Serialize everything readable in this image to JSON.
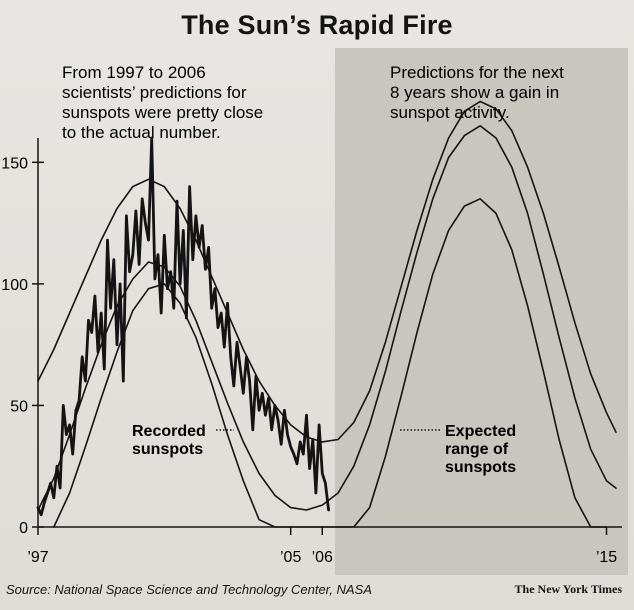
{
  "title": "The Sun’s Rapid Fire",
  "left_note": [
    "From 1997 to 2006",
    "scientists’ predictions for",
    "sunspots were pretty close",
    "to the actual number."
  ],
  "right_note": [
    "Predictions for the next",
    "8 years show a gain in",
    "sunspot activity."
  ],
  "recorded_label": [
    "Recorded",
    "sunspots"
  ],
  "expected_label": [
    "Expected",
    "range of",
    "sunspots"
  ],
  "source": "Source: National Space Science and Technology Center, NASA",
  "credit": "The New York Times",
  "colors": {
    "shade": "#c9c5bf",
    "ink": "#141414"
  },
  "chart_data": {
    "type": "line",
    "title": "The Sun’s Rapid Fire",
    "xlabel": "",
    "ylabel": "",
    "xlim": [
      1997,
      2015.3
    ],
    "ylim": [
      0,
      160
    ],
    "y_ticks": [
      0,
      50,
      100,
      150
    ],
    "y_tick_labels": [
      "0",
      "50",
      "100",
      "150"
    ],
    "x_ticks": [
      1997,
      2005,
      2006,
      2015
    ],
    "x_tick_labels": [
      "’97",
      "’05",
      "’06",
      "’15"
    ],
    "grid": false,
    "shaded_forecast_region": [
      2006.4,
      2015.3
    ],
    "series": [
      {
        "style": "recorded",
        "x": [
          1997.0,
          1997.1,
          1997.2,
          1997.3,
          1997.4,
          1997.5,
          1997.6,
          1997.7,
          1997.8,
          1997.9,
          1998.0,
          1998.1,
          1998.2,
          1998.3,
          1998.4,
          1998.5,
          1998.6,
          1998.7,
          1998.8,
          1998.9,
          1999.0,
          1999.1,
          1999.2,
          1999.3,
          1999.4,
          1999.5,
          1999.6,
          1999.7,
          1999.8,
          1999.9,
          2000.0,
          2000.1,
          2000.2,
          2000.3,
          2000.4,
          2000.5,
          2000.6,
          2000.7,
          2000.8,
          2000.9,
          2001.0,
          2001.1,
          2001.2,
          2001.3,
          2001.4,
          2001.5,
          2001.6,
          2001.7,
          2001.8,
          2001.9,
          2002.0,
          2002.1,
          2002.2,
          2002.3,
          2002.4,
          2002.5,
          2002.6,
          2002.7,
          2002.8,
          2002.9,
          2003.0,
          2003.1,
          2003.2,
          2003.3,
          2003.4,
          2003.5,
          2003.6,
          2003.7,
          2003.8,
          2003.9,
          2004.0,
          2004.1,
          2004.2,
          2004.3,
          2004.4,
          2004.5,
          2004.6,
          2004.7,
          2004.8,
          2004.9,
          2005.0,
          2005.1,
          2005.2,
          2005.3,
          2005.4,
          2005.5,
          2005.6,
          2005.7,
          2005.8,
          2005.9,
          2006.0,
          2006.1,
          2006.2
        ],
        "values": [
          8,
          5,
          10,
          14,
          18,
          12,
          25,
          16,
          50,
          38,
          42,
          30,
          48,
          52,
          70,
          60,
          85,
          80,
          95,
          72,
          88,
          65,
          118,
          90,
          110,
          75,
          100,
          60,
          128,
          105,
          112,
          130,
          108,
          135,
          125,
          118,
          160,
          102,
          112,
          88,
          120,
          98,
          105,
          90,
          134,
          100,
          122,
          86,
          140,
          110,
          128,
          115,
          124,
          106,
          115,
          90,
          98,
          82,
          88,
          74,
          92,
          70,
          58,
          76,
          66,
          55,
          70,
          60,
          40,
          62,
          48,
          55,
          46,
          53,
          40,
          50,
          44,
          34,
          48,
          38,
          33,
          30,
          26,
          35,
          30,
          46,
          24,
          36,
          14,
          42,
          22,
          18,
          7
        ]
      },
      {
        "style": "prediction",
        "x": [
          1997.0,
          1997.5,
          1998.0,
          1998.5,
          1999.0,
          1999.5,
          2000.0,
          2000.5,
          2001.0,
          2001.5,
          2002.0,
          2002.5,
          2003.0,
          2003.5,
          2004.0,
          2004.5,
          2005.0,
          2005.5,
          2006.0,
          2006.5,
          2007.0,
          2007.5,
          2008.0,
          2008.5,
          2009.0,
          2009.5,
          2010.0,
          2010.5,
          2011.0,
          2011.5,
          2012.0,
          2012.5,
          2013.0,
          2013.5,
          2014.0,
          2014.5,
          2015.0,
          2015.3
        ],
        "values": [
          60,
          73,
          88,
          103,
          118,
          131,
          140,
          143,
          140,
          131,
          118,
          103,
          88,
          73,
          60,
          50,
          42,
          37,
          35,
          36,
          43,
          56,
          76,
          99,
          122,
          143,
          160,
          171,
          175,
          172,
          163,
          148,
          129,
          107,
          84,
          63,
          47,
          39
        ]
      },
      {
        "style": "prediction",
        "x": [
          1997.0,
          1997.5,
          1998.0,
          1998.5,
          1999.0,
          1999.5,
          2000.0,
          2000.5,
          2001.0,
          2001.5,
          2002.0,
          2002.5,
          2003.0,
          2003.5,
          2004.0,
          2004.5,
          2005.0,
          2005.5,
          2006.0,
          2006.5,
          2007.0,
          2007.5,
          2008.0,
          2008.5,
          2009.0,
          2009.5,
          2010.0,
          2010.5,
          2011.0,
          2011.5,
          2012.0,
          2012.5,
          2013.0,
          2013.5,
          2014.0,
          2014.5,
          2015.0,
          2015.3
        ],
        "values": [
          7,
          20,
          38,
          57,
          75,
          91,
          102,
          109,
          107,
          99,
          85,
          68,
          51,
          35,
          22,
          13,
          8,
          7,
          9,
          14,
          25,
          42,
          64,
          89,
          113,
          135,
          152,
          161,
          165,
          160,
          148,
          129,
          104,
          78,
          53,
          32,
          19,
          16
        ]
      },
      {
        "style": "prediction",
        "x": [
          1997.5,
          1998.0,
          1998.5,
          1999.0,
          1999.5,
          2000.0,
          2000.5,
          2001.0,
          2001.5,
          2002.0,
          2002.5,
          2003.0,
          2003.5,
          2004.0,
          2004.5,
          2005.0,
          2005.5,
          2006.0,
          2006.5,
          2007.0,
          2007.5,
          2008.0,
          2008.5,
          2009.0,
          2009.5,
          2010.0,
          2010.5,
          2011.0,
          2011.5,
          2012.0,
          2012.5,
          2013.0,
          2013.5,
          2014.0,
          2014.5,
          2015.0
        ],
        "values": [
          0,
          14,
          33,
          53,
          72,
          89,
          98,
          100,
          92,
          78,
          59,
          38,
          19,
          3,
          0,
          0,
          0,
          0,
          0,
          0,
          8,
          29,
          54,
          80,
          104,
          122,
          132,
          135,
          129,
          114,
          91,
          64,
          36,
          12,
          0,
          0
        ]
      }
    ]
  }
}
